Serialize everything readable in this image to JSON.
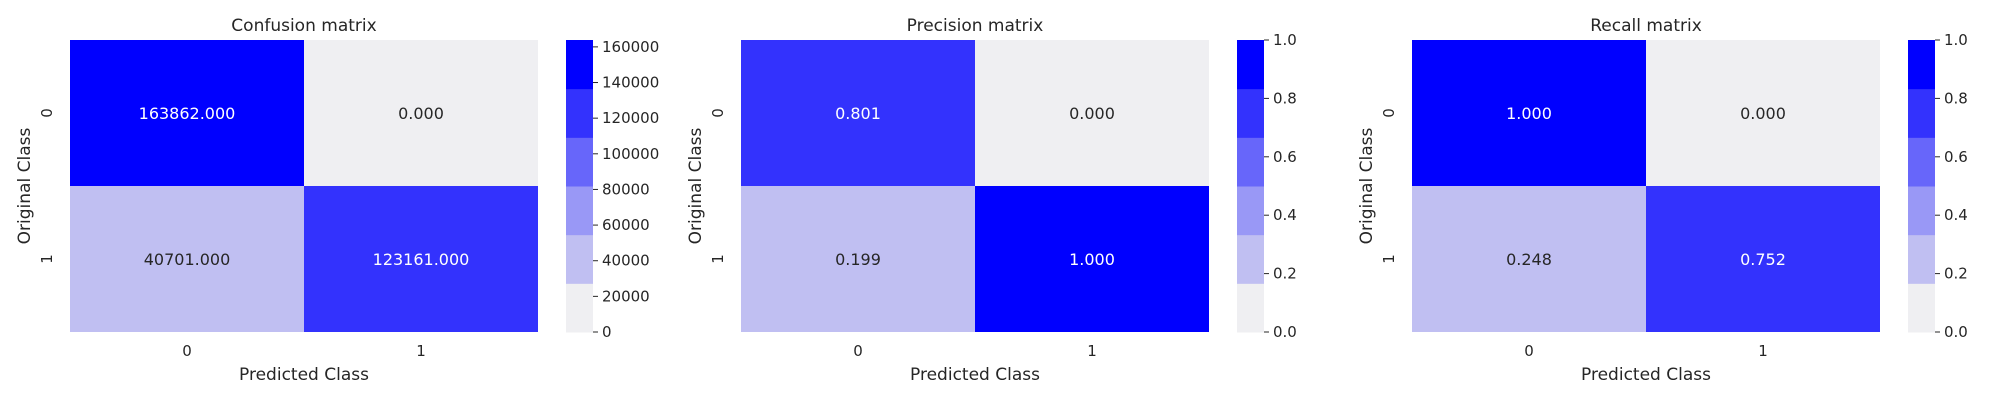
{
  "chart_data": [
    {
      "type": "heatmap",
      "title": "Confusion matrix",
      "xlabel": "Predicted Class",
      "ylabel": "Original Class",
      "xticks": [
        "0",
        "1"
      ],
      "yticks": [
        "0",
        "1"
      ],
      "values": [
        [
          163862,
          0
        ],
        [
          40701,
          123161
        ]
      ],
      "annotations": [
        [
          "163862.000",
          "0.000"
        ],
        [
          "40701.000",
          "123161.000"
        ]
      ],
      "colorbar": {
        "vmin": 0,
        "vmax": 163862,
        "ticks": [
          0,
          20000,
          40000,
          60000,
          80000,
          100000,
          120000,
          140000,
          160000
        ],
        "tick_labels": [
          "0",
          "20000",
          "40000",
          "60000",
          "80000",
          "100000",
          "120000",
          "140000",
          "160000"
        ]
      }
    },
    {
      "type": "heatmap",
      "title": "Precision matrix",
      "xlabel": "Predicted Class",
      "ylabel": "Original Class",
      "xticks": [
        "0",
        "1"
      ],
      "yticks": [
        "0",
        "1"
      ],
      "values": [
        [
          0.801,
          0.0
        ],
        [
          0.199,
          1.0
        ]
      ],
      "annotations": [
        [
          "0.801",
          "0.000"
        ],
        [
          "0.199",
          "1.000"
        ]
      ],
      "colorbar": {
        "vmin": 0,
        "vmax": 1,
        "ticks": [
          0,
          0.2,
          0.4,
          0.6,
          0.8,
          1.0
        ],
        "tick_labels": [
          "0.0",
          "0.2",
          "0.4",
          "0.6",
          "0.8",
          "1.0"
        ]
      }
    },
    {
      "type": "heatmap",
      "title": "Recall matrix",
      "xlabel": "Predicted Class",
      "ylabel": "Original Class",
      "xticks": [
        "0",
        "1"
      ],
      "yticks": [
        "0",
        "1"
      ],
      "values": [
        [
          1.0,
          0.0
        ],
        [
          0.248,
          0.752
        ]
      ],
      "annotations": [
        [
          "1.000",
          "0.000"
        ],
        [
          "0.248",
          "0.752"
        ]
      ],
      "colorbar": {
        "vmin": 0,
        "vmax": 1,
        "ticks": [
          0,
          0.2,
          0.4,
          0.6,
          0.8,
          1.0
        ],
        "tick_labels": [
          "0.0",
          "0.2",
          "0.4",
          "0.6",
          "0.8",
          "1.0"
        ]
      }
    }
  ],
  "colormap": [
    "#efeff2",
    "#c0bff2",
    "#9998f6",
    "#6766fa",
    "#3332fd",
    "#0000ff"
  ],
  "annotation_dark_color": "#262626",
  "annotation_light_color": "#ffffff"
}
